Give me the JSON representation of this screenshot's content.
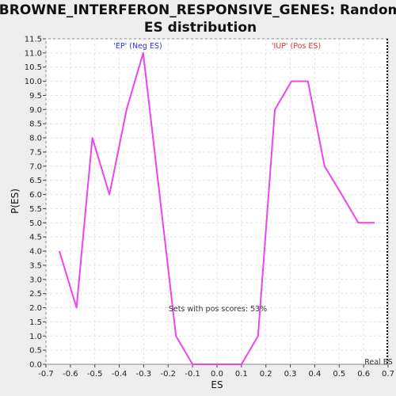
{
  "chart_data": {
    "type": "line",
    "title_line1": "BROWNE_INTERFERON_RESPONSIVE_GENES: Random",
    "title_line2": "ES distribution",
    "xlabel": "ES",
    "ylabel": "P(ES)",
    "xlim": [
      -0.7,
      0.7
    ],
    "ylim": [
      0.0,
      11.5
    ],
    "x_ticks": [
      "-0.7",
      "-0.6",
      "-0.5",
      "-0.4",
      "-0.3",
      "-0.2",
      "-0.1",
      "0.0",
      "0.1",
      "0.2",
      "0.3",
      "0.4",
      "0.5",
      "0.6",
      "0.7"
    ],
    "y_ticks": [
      "0.0",
      "0.5",
      "1.0",
      "1.5",
      "2.0",
      "2.5",
      "3.0",
      "3.5",
      "4.0",
      "4.5",
      "5.0",
      "5.5",
      "6.0",
      "6.5",
      "7.0",
      "7.5",
      "8.0",
      "8.5",
      "9.0",
      "9.5",
      "10.0",
      "10.5",
      "11.0",
      "11.5"
    ],
    "grid": true,
    "series": [
      {
        "color": "#ee44ee",
        "x": [
          -0.645,
          -0.575,
          -0.51,
          -0.44,
          -0.37,
          -0.302,
          -0.235,
          -0.168,
          -0.1,
          0.03,
          0.1,
          0.168,
          0.237,
          0.305,
          0.372,
          0.44,
          0.51,
          0.578,
          0.645
        ],
        "y": [
          4.0,
          2.0,
          8.0,
          6.0,
          9.0,
          11.0,
          6.0,
          1.0,
          0.0,
          0.0,
          0.0,
          1.0,
          9.0,
          10.0,
          10.0,
          7.0,
          6.0,
          5.0,
          5.0
        ]
      }
    ],
    "annotations": {
      "neg_label": "'EP' (Neg ES)",
      "pos_label": "'IUP' (Pos ES)",
      "pos_scores": "Sets with pos scores: 53%",
      "real_es_label": "Real ES"
    },
    "real_es_value": 0.7,
    "colors": {
      "neg": "#3333cc",
      "pos": "#dd3333",
      "line": "#ee44ee",
      "real_es": "#000000"
    }
  }
}
